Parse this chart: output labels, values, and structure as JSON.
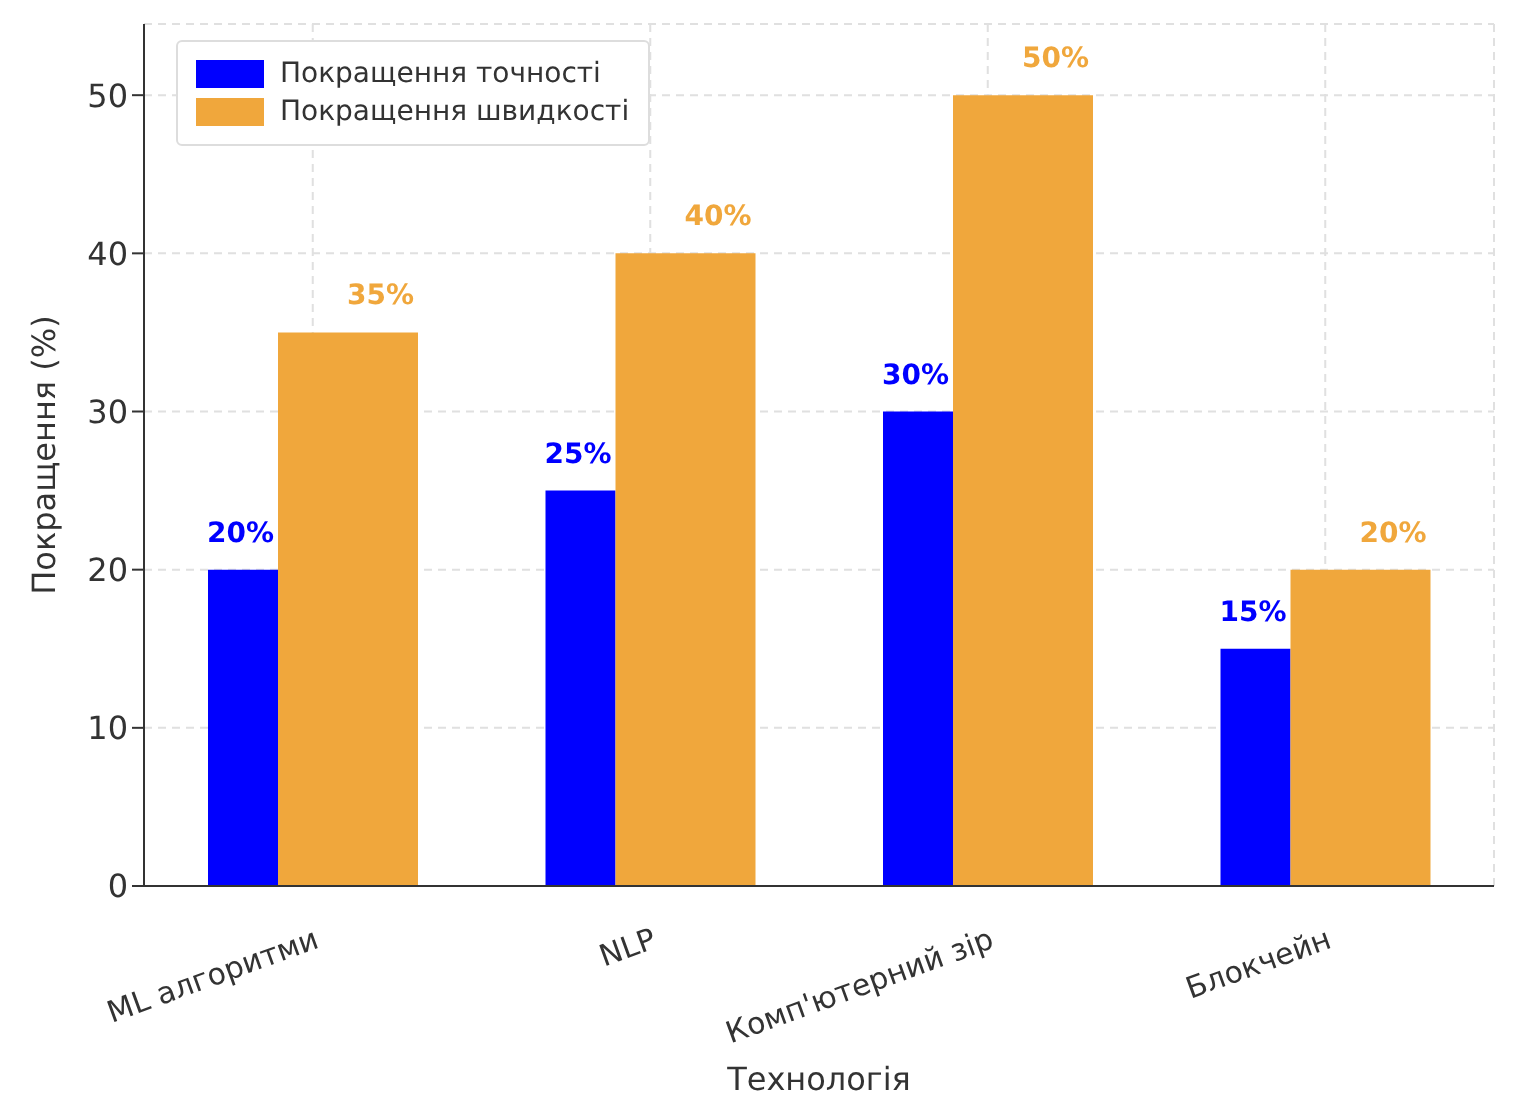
{
  "chart_data": {
    "type": "bar",
    "xlabel": "Технологія",
    "ylabel": "Покращення (%)",
    "categories": [
      "ML алгоритми",
      "NLP",
      "Комп'ютерний зір",
      "Блокчейн"
    ],
    "series": [
      {
        "name": "Покращення точності",
        "color": "#0000ff",
        "values": [
          20,
          25,
          30,
          15
        ],
        "value_labels": [
          "20%",
          "25%",
          "30%",
          "15%"
        ]
      },
      {
        "name": "Покращення швидкості",
        "color": "#f0a73c",
        "values": [
          35,
          40,
          50,
          20
        ],
        "value_labels": [
          "35%",
          "40%",
          "50%",
          "20%"
        ]
      }
    ],
    "ylim": [
      0,
      54.5
    ],
    "yticks": [
      0,
      10,
      20,
      30,
      40,
      50
    ],
    "grid": true,
    "legend": "top left"
  }
}
